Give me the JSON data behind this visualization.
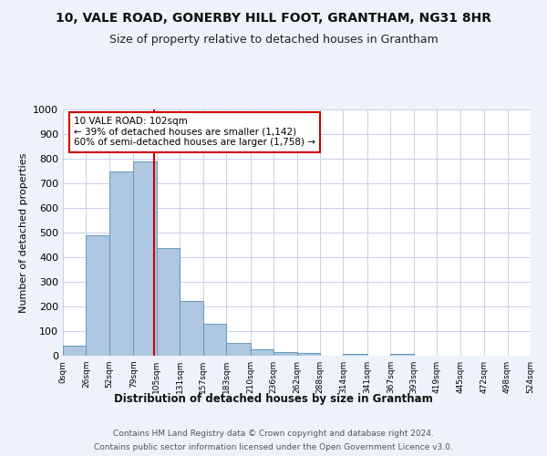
{
  "title1": "10, VALE ROAD, GONERBY HILL FOOT, GRANTHAM, NG31 8HR",
  "title2": "Size of property relative to detached houses in Grantham",
  "xlabel": "Distribution of detached houses by size in Grantham",
  "ylabel": "Number of detached properties",
  "bar_values": [
    42,
    490,
    750,
    790,
    438,
    222,
    128,
    52,
    27,
    15,
    10,
    0,
    8,
    0,
    9,
    0,
    0,
    0,
    0,
    0
  ],
  "bin_edges": [
    0,
    26,
    52,
    79,
    105,
    131,
    157,
    183,
    210,
    236,
    262,
    288,
    314,
    341,
    367,
    393,
    419,
    445,
    472,
    498,
    524
  ],
  "bar_color": "#aec6df",
  "bar_edge_color": "#6699bb",
  "property_sqm": 102,
  "annotation_text": "10 VALE ROAD: 102sqm\n← 39% of detached houses are smaller (1,142)\n60% of semi-detached houses are larger (1,758) →",
  "annotation_box_color": "#ffffff",
  "annotation_box_edge": "#cc0000",
  "vline_x": 102,
  "vline_color": "#cc0000",
  "ylim": [
    0,
    1000
  ],
  "yticks": [
    0,
    100,
    200,
    300,
    400,
    500,
    600,
    700,
    800,
    900,
    1000
  ],
  "tick_labels": [
    "0sqm",
    "26sqm",
    "52sqm",
    "79sqm",
    "105sqm",
    "131sqm",
    "157sqm",
    "183sqm",
    "210sqm",
    "236sqm",
    "262sqm",
    "288sqm",
    "314sqm",
    "341sqm",
    "367sqm",
    "393sqm",
    "419sqm",
    "445sqm",
    "472sqm",
    "498sqm",
    "524sqm"
  ],
  "footer1": "Contains HM Land Registry data © Crown copyright and database right 2024.",
  "footer2": "Contains public sector information licensed under the Open Government Licence v3.0.",
  "bg_color": "#eef2fb",
  "plot_bg_color": "#ffffff",
  "grid_color": "#c8d0e8"
}
